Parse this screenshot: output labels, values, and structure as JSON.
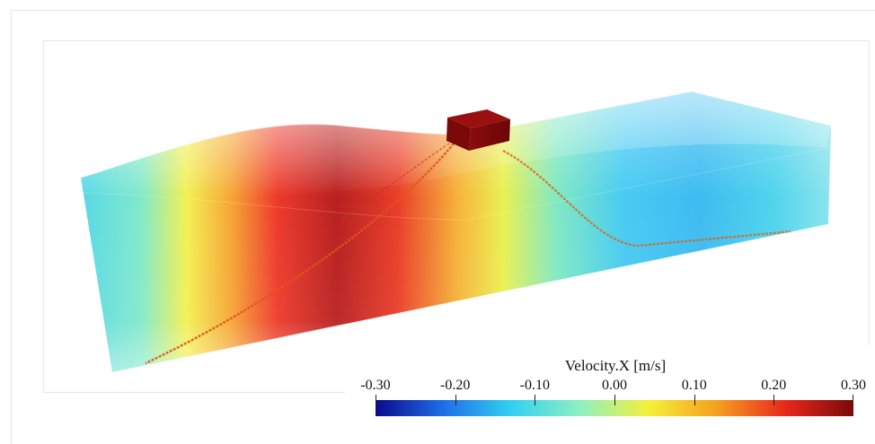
{
  "colorbar": {
    "title": "Velocity.X [m/s]",
    "ticks": [
      "-0.30",
      "-0.20",
      "-0.10",
      "0.00",
      "0.10",
      "0.20",
      "0.30"
    ],
    "range": [
      -0.3,
      0.3
    ],
    "colormap": [
      "#0a0a8a",
      "#1f6fe8",
      "#34d0f0",
      "#8ef0c2",
      "#f5f03a",
      "#f5a020",
      "#e8281c",
      "#7a0a0a"
    ]
  }
}
